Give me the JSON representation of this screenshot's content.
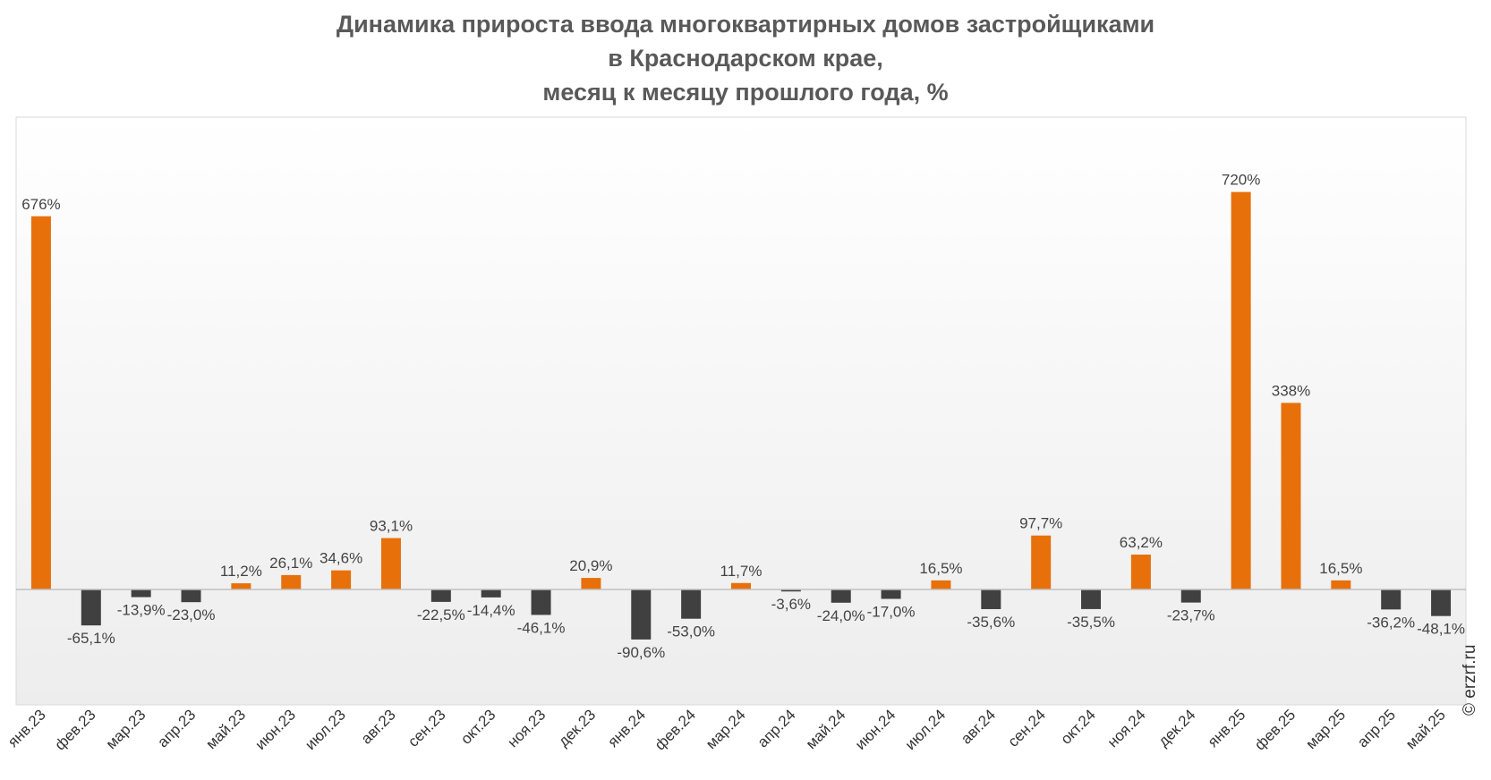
{
  "chart_data": {
    "type": "bar",
    "title": [
      "Динамика прироста ввода многоквартирных домов застройщиками",
      "в Краснодарском крае,",
      "месяц к месяцу прошлого года, %"
    ],
    "xlabel": "",
    "ylabel": "",
    "ylim": [
      -130,
      800
    ],
    "grid": false,
    "legend": "none",
    "categories": [
      "янв.23",
      "фев.23",
      "мар.23",
      "апр.23",
      "май.23",
      "июн.23",
      "июл.23",
      "авг.23",
      "сен.23",
      "окт.23",
      "ноя.23",
      "дек.23",
      "янв.24",
      "фев.24",
      "мар.24",
      "апр.24",
      "май.24",
      "июн.24",
      "июл.24",
      "авг.24",
      "сен.24",
      "окт.24",
      "ноя.24",
      "дек.24",
      "янв.25",
      "фев.25",
      "мар.25",
      "апр.25",
      "май.25"
    ],
    "values": [
      676,
      -65.1,
      -13.9,
      -23.0,
      11.2,
      26.1,
      34.6,
      93.1,
      -22.5,
      -14.4,
      -46.1,
      20.9,
      -90.6,
      -53.0,
      11.7,
      -3.6,
      -24.0,
      -17.0,
      16.5,
      -35.6,
      97.7,
      -35.5,
      63.2,
      -23.7,
      720,
      338,
      16.5,
      -36.2,
      -48.1
    ],
    "data_labels": [
      "676%",
      "-65,1%",
      "-13,9%",
      "-23,0%",
      "11,2%",
      "26,1%",
      "34,6%",
      "93,1%",
      "-22,5%",
      "-14,4%",
      "-46,1%",
      "20,9%",
      "-90,6%",
      "-53,0%",
      "11,7%",
      "-3,6%",
      "-24,0%",
      "-17,0%",
      "16,5%",
      "-35,6%",
      "97,7%",
      "-35,5%",
      "63,2%",
      "-23,7%",
      "720%",
      "338%",
      "16,5%",
      "-36,2%",
      "-48,1%"
    ],
    "colors": {
      "positive": "#E8700A",
      "negative": "#404040",
      "axis": "#BFBFBF"
    }
  },
  "watermark": "© erzrf.ru"
}
